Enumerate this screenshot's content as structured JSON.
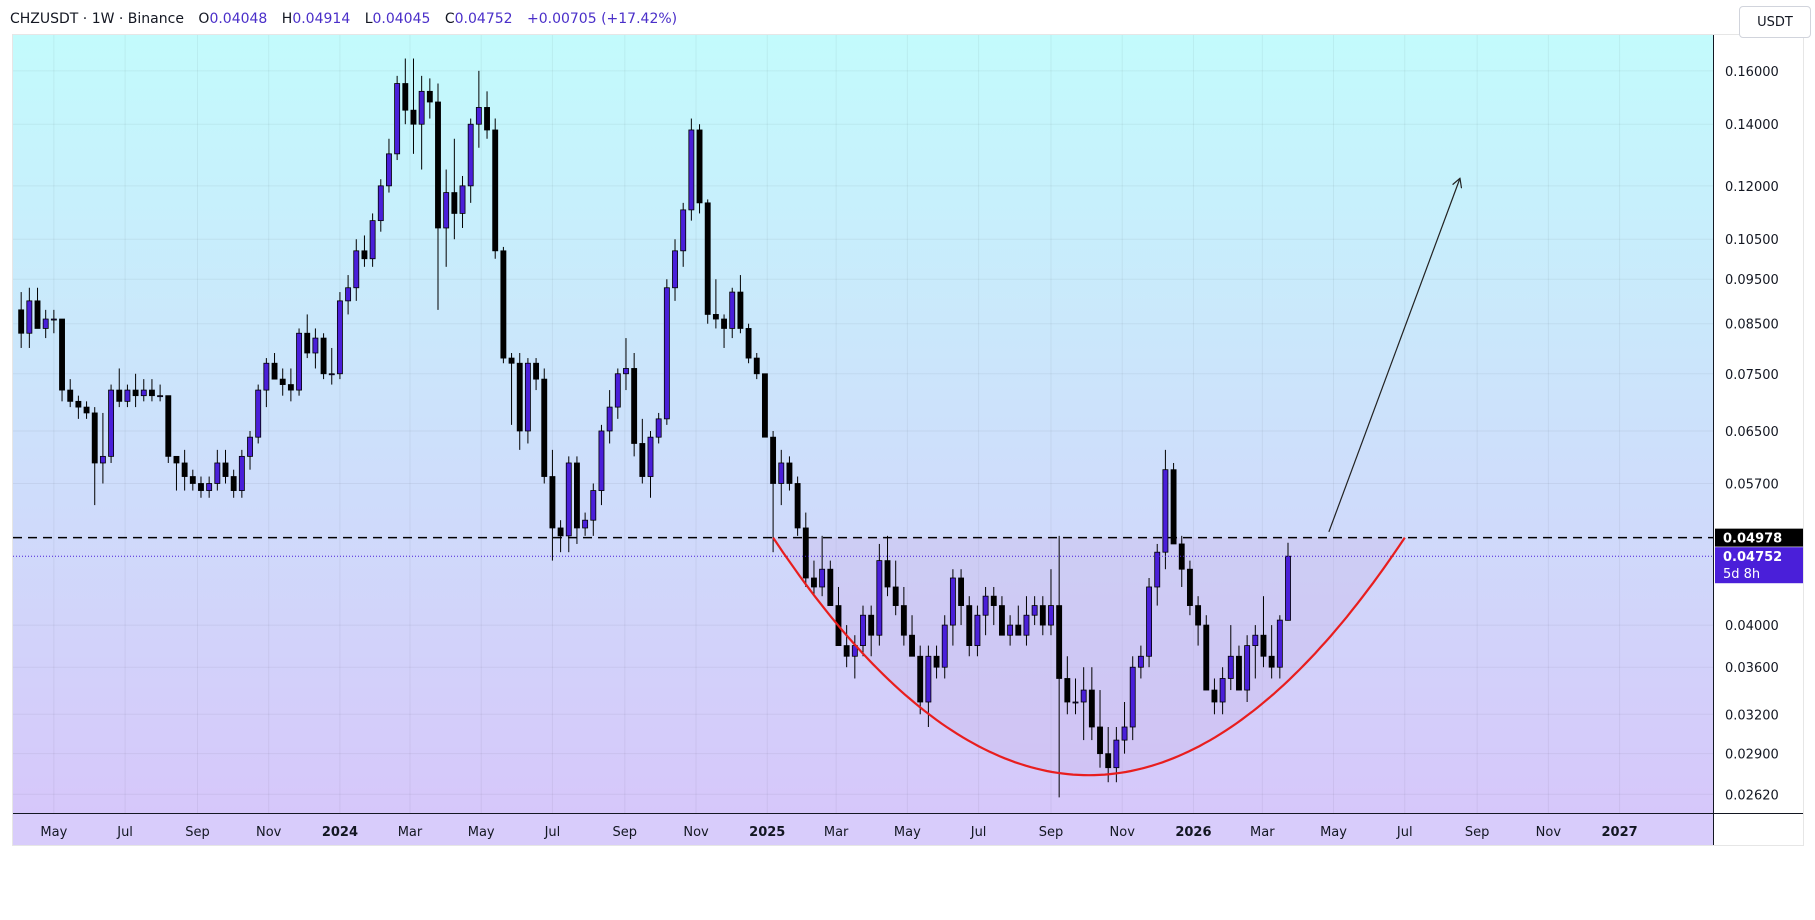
{
  "header": {
    "symbol_line": "CHZUSDT · 1W · Binance",
    "open_label": "O",
    "open_value": "0.04048",
    "high_label": "H",
    "high_value": "0.04914",
    "low_label": "L",
    "low_value": "0.04045",
    "close_label": "C",
    "close_value": "0.04752",
    "change": "+0.00705 (+17.42%)"
  },
  "currency_button": "USDT",
  "colors": {
    "bg_top": "#c3fbfc",
    "bg_bottom": "#d6c7fa",
    "up_candle": "#4a1fd9",
    "down_candle": "#000000",
    "curve": "#e81e1e",
    "current_price_tag": "#4a1fd9",
    "resistance_tag": "#000000"
  },
  "chart_data": {
    "type": "candlestick",
    "symbol": "CHZUSDT",
    "interval": "1W",
    "exchange": "Binance",
    "y_scale": "log",
    "ylim": [
      0.025,
      0.175
    ],
    "x_range": [
      "2023-03-27",
      "2027-03-22"
    ],
    "y_ticks": [
      "0.16000",
      "0.14000",
      "0.12000",
      "0.10500",
      "0.09500",
      "0.08500",
      "0.07500",
      "0.06500",
      "0.05700",
      "0.04000",
      "0.03600",
      "0.03200",
      "0.02900",
      "0.02620"
    ],
    "x_ticks": [
      {
        "label": "May",
        "date": "2023-05-01",
        "bold": false
      },
      {
        "label": "Jul",
        "date": "2023-07-01",
        "bold": false
      },
      {
        "label": "Sep",
        "date": "2023-09-01",
        "bold": false
      },
      {
        "label": "Nov",
        "date": "2023-11-01",
        "bold": false
      },
      {
        "label": "2024",
        "date": "2024-01-01",
        "bold": true
      },
      {
        "label": "Mar",
        "date": "2024-03-01",
        "bold": false
      },
      {
        "label": "May",
        "date": "2024-05-01",
        "bold": false
      },
      {
        "label": "Jul",
        "date": "2024-07-01",
        "bold": false
      },
      {
        "label": "Sep",
        "date": "2024-09-01",
        "bold": false
      },
      {
        "label": "Nov",
        "date": "2024-11-01",
        "bold": false
      },
      {
        "label": "2025",
        "date": "2025-01-01",
        "bold": true
      },
      {
        "label": "Mar",
        "date": "2025-03-01",
        "bold": false
      },
      {
        "label": "May",
        "date": "2025-05-01",
        "bold": false
      },
      {
        "label": "Jul",
        "date": "2025-07-01",
        "bold": false
      },
      {
        "label": "Sep",
        "date": "2025-09-01",
        "bold": false
      },
      {
        "label": "Nov",
        "date": "2025-11-01",
        "bold": false
      },
      {
        "label": "2026",
        "date": "2026-01-01",
        "bold": true
      },
      {
        "label": "Mar",
        "date": "2026-03-01",
        "bold": false
      },
      {
        "label": "May",
        "date": "2026-05-01",
        "bold": false
      },
      {
        "label": "Jul",
        "date": "2026-07-01",
        "bold": false
      },
      {
        "label": "Sep",
        "date": "2026-09-01",
        "bold": false
      },
      {
        "label": "Nov",
        "date": "2026-11-01",
        "bold": false
      },
      {
        "label": "2027",
        "date": "2027-01-01",
        "bold": true
      }
    ],
    "first_candle_date": "2023-04-03",
    "candles": [
      [
        0.088,
        0.092,
        0.08,
        0.083
      ],
      [
        0.083,
        0.093,
        0.08,
        0.09
      ],
      [
        0.09,
        0.093,
        0.084,
        0.084
      ],
      [
        0.084,
        0.088,
        0.082,
        0.086
      ],
      [
        0.086,
        0.088,
        0.083,
        0.086
      ],
      [
        0.086,
        0.086,
        0.07,
        0.072
      ],
      [
        0.072,
        0.074,
        0.069,
        0.07
      ],
      [
        0.07,
        0.071,
        0.067,
        0.069
      ],
      [
        0.069,
        0.07,
        0.067,
        0.068
      ],
      [
        0.068,
        0.069,
        0.054,
        0.06
      ],
      [
        0.06,
        0.068,
        0.057,
        0.061
      ],
      [
        0.061,
        0.073,
        0.06,
        0.072
      ],
      [
        0.072,
        0.076,
        0.069,
        0.07
      ],
      [
        0.07,
        0.073,
        0.069,
        0.072
      ],
      [
        0.072,
        0.075,
        0.069,
        0.071
      ],
      [
        0.071,
        0.074,
        0.07,
        0.072
      ],
      [
        0.072,
        0.074,
        0.07,
        0.071
      ],
      [
        0.071,
        0.073,
        0.07,
        0.071
      ],
      [
        0.071,
        0.071,
        0.06,
        0.061
      ],
      [
        0.061,
        0.061,
        0.056,
        0.06
      ],
      [
        0.06,
        0.062,
        0.056,
        0.058
      ],
      [
        0.058,
        0.059,
        0.056,
        0.057
      ],
      [
        0.057,
        0.058,
        0.055,
        0.056
      ],
      [
        0.056,
        0.058,
        0.055,
        0.057
      ],
      [
        0.057,
        0.062,
        0.056,
        0.06
      ],
      [
        0.06,
        0.062,
        0.057,
        0.058
      ],
      [
        0.058,
        0.059,
        0.055,
        0.056
      ],
      [
        0.056,
        0.062,
        0.055,
        0.061
      ],
      [
        0.061,
        0.065,
        0.059,
        0.064
      ],
      [
        0.064,
        0.073,
        0.063,
        0.072
      ],
      [
        0.072,
        0.078,
        0.069,
        0.077
      ],
      [
        0.077,
        0.079,
        0.074,
        0.074
      ],
      [
        0.074,
        0.076,
        0.071,
        0.073
      ],
      [
        0.073,
        0.076,
        0.07,
        0.072
      ],
      [
        0.072,
        0.084,
        0.071,
        0.083
      ],
      [
        0.083,
        0.087,
        0.078,
        0.079
      ],
      [
        0.079,
        0.084,
        0.076,
        0.082
      ],
      [
        0.082,
        0.083,
        0.074,
        0.075
      ],
      [
        0.075,
        0.08,
        0.073,
        0.075
      ],
      [
        0.075,
        0.092,
        0.074,
        0.09
      ],
      [
        0.09,
        0.096,
        0.087,
        0.093
      ],
      [
        0.093,
        0.105,
        0.09,
        0.102
      ],
      [
        0.102,
        0.106,
        0.098,
        0.1
      ],
      [
        0.1,
        0.112,
        0.098,
        0.11
      ],
      [
        0.11,
        0.122,
        0.107,
        0.12
      ],
      [
        0.12,
        0.135,
        0.118,
        0.13
      ],
      [
        0.13,
        0.158,
        0.128,
        0.155
      ],
      [
        0.155,
        0.165,
        0.14,
        0.145
      ],
      [
        0.145,
        0.165,
        0.13,
        0.14
      ],
      [
        0.14,
        0.158,
        0.125,
        0.152
      ],
      [
        0.152,
        0.157,
        0.142,
        0.148
      ],
      [
        0.148,
        0.155,
        0.088,
        0.108
      ],
      [
        0.108,
        0.125,
        0.098,
        0.118
      ],
      [
        0.118,
        0.135,
        0.105,
        0.112
      ],
      [
        0.112,
        0.123,
        0.108,
        0.12
      ],
      [
        0.12,
        0.142,
        0.115,
        0.14
      ],
      [
        0.14,
        0.16,
        0.132,
        0.146
      ],
      [
        0.146,
        0.152,
        0.135,
        0.138
      ],
      [
        0.138,
        0.142,
        0.1,
        0.102
      ],
      [
        0.102,
        0.103,
        0.077,
        0.078
      ],
      [
        0.078,
        0.079,
        0.066,
        0.077
      ],
      [
        0.077,
        0.079,
        0.062,
        0.065
      ],
      [
        0.065,
        0.078,
        0.063,
        0.077
      ],
      [
        0.077,
        0.078,
        0.072,
        0.074
      ],
      [
        0.074,
        0.076,
        0.057,
        0.058
      ],
      [
        0.058,
        0.062,
        0.047,
        0.051
      ],
      [
        0.051,
        0.052,
        0.048,
        0.05
      ],
      [
        0.05,
        0.061,
        0.048,
        0.06
      ],
      [
        0.06,
        0.061,
        0.049,
        0.051
      ],
      [
        0.051,
        0.053,
        0.05,
        0.052
      ],
      [
        0.052,
        0.057,
        0.05,
        0.056
      ],
      [
        0.056,
        0.066,
        0.054,
        0.065
      ],
      [
        0.065,
        0.072,
        0.063,
        0.069
      ],
      [
        0.069,
        0.076,
        0.067,
        0.075
      ],
      [
        0.075,
        0.082,
        0.072,
        0.076
      ],
      [
        0.076,
        0.079,
        0.061,
        0.063
      ],
      [
        0.063,
        0.067,
        0.057,
        0.058
      ],
      [
        0.058,
        0.065,
        0.055,
        0.064
      ],
      [
        0.064,
        0.068,
        0.063,
        0.067
      ],
      [
        0.067,
        0.095,
        0.066,
        0.093
      ],
      [
        0.093,
        0.105,
        0.09,
        0.102
      ],
      [
        0.102,
        0.115,
        0.098,
        0.113
      ],
      [
        0.113,
        0.142,
        0.11,
        0.138
      ],
      [
        0.138,
        0.14,
        0.112,
        0.115
      ],
      [
        0.115,
        0.116,
        0.085,
        0.087
      ],
      [
        0.087,
        0.095,
        0.084,
        0.086
      ],
      [
        0.086,
        0.087,
        0.08,
        0.084
      ],
      [
        0.084,
        0.093,
        0.082,
        0.092
      ],
      [
        0.092,
        0.096,
        0.083,
        0.084
      ],
      [
        0.084,
        0.085,
        0.077,
        0.078
      ],
      [
        0.078,
        0.079,
        0.074,
        0.075
      ],
      [
        0.075,
        0.075,
        0.064,
        0.064
      ],
      [
        0.064,
        0.065,
        0.048,
        0.057
      ],
      [
        0.057,
        0.062,
        0.054,
        0.06
      ],
      [
        0.06,
        0.061,
        0.056,
        0.057
      ],
      [
        0.057,
        0.058,
        0.05,
        0.051
      ],
      [
        0.051,
        0.053,
        0.044,
        0.045
      ],
      [
        0.045,
        0.047,
        0.043,
        0.044
      ],
      [
        0.044,
        0.05,
        0.043,
        0.046
      ],
      [
        0.046,
        0.047,
        0.042,
        0.042
      ],
      [
        0.042,
        0.044,
        0.038,
        0.038
      ],
      [
        0.038,
        0.04,
        0.036,
        0.037
      ],
      [
        0.037,
        0.039,
        0.035,
        0.038
      ],
      [
        0.038,
        0.042,
        0.037,
        0.041
      ],
      [
        0.041,
        0.042,
        0.037,
        0.039
      ],
      [
        0.039,
        0.049,
        0.038,
        0.047
      ],
      [
        0.047,
        0.05,
        0.043,
        0.044
      ],
      [
        0.044,
        0.047,
        0.041,
        0.042
      ],
      [
        0.042,
        0.044,
        0.038,
        0.039
      ],
      [
        0.039,
        0.041,
        0.037,
        0.037
      ],
      [
        0.037,
        0.038,
        0.032,
        0.033
      ],
      [
        0.033,
        0.038,
        0.031,
        0.037
      ],
      [
        0.037,
        0.038,
        0.035,
        0.036
      ],
      [
        0.036,
        0.041,
        0.035,
        0.04
      ],
      [
        0.04,
        0.046,
        0.038,
        0.045
      ],
      [
        0.045,
        0.046,
        0.04,
        0.042
      ],
      [
        0.042,
        0.043,
        0.037,
        0.038
      ],
      [
        0.038,
        0.042,
        0.037,
        0.041
      ],
      [
        0.041,
        0.044,
        0.039,
        0.043
      ],
      [
        0.043,
        0.044,
        0.04,
        0.042
      ],
      [
        0.042,
        0.043,
        0.039,
        0.039
      ],
      [
        0.039,
        0.041,
        0.038,
        0.04
      ],
      [
        0.04,
        0.042,
        0.039,
        0.039
      ],
      [
        0.039,
        0.043,
        0.038,
        0.041
      ],
      [
        0.041,
        0.043,
        0.04,
        0.042
      ],
      [
        0.042,
        0.043,
        0.039,
        0.04
      ],
      [
        0.04,
        0.046,
        0.039,
        0.042
      ],
      [
        0.042,
        0.05,
        0.026,
        0.035
      ],
      [
        0.035,
        0.037,
        0.032,
        0.033
      ],
      [
        0.033,
        0.035,
        0.032,
        0.033
      ],
      [
        0.033,
        0.036,
        0.03,
        0.034
      ],
      [
        0.034,
        0.036,
        0.03,
        0.031
      ],
      [
        0.031,
        0.034,
        0.028,
        0.029
      ],
      [
        0.029,
        0.031,
        0.027,
        0.028
      ],
      [
        0.028,
        0.031,
        0.027,
        0.03
      ],
      [
        0.03,
        0.033,
        0.029,
        0.031
      ],
      [
        0.031,
        0.037,
        0.03,
        0.036
      ],
      [
        0.036,
        0.038,
        0.035,
        0.037
      ],
      [
        0.037,
        0.045,
        0.036,
        0.044
      ],
      [
        0.044,
        0.049,
        0.042,
        0.048
      ],
      [
        0.048,
        0.062,
        0.046,
        0.059
      ],
      [
        0.059,
        0.06,
        0.049,
        0.049
      ],
      [
        0.049,
        0.05,
        0.044,
        0.046
      ],
      [
        0.046,
        0.047,
        0.041,
        0.042
      ],
      [
        0.042,
        0.043,
        0.038,
        0.04
      ],
      [
        0.04,
        0.041,
        0.034,
        0.034
      ],
      [
        0.034,
        0.035,
        0.032,
        0.033
      ],
      [
        0.033,
        0.036,
        0.032,
        0.035
      ],
      [
        0.035,
        0.04,
        0.034,
        0.037
      ],
      [
        0.037,
        0.038,
        0.034,
        0.034
      ],
      [
        0.034,
        0.039,
        0.033,
        0.038
      ],
      [
        0.038,
        0.04,
        0.035,
        0.039
      ],
      [
        0.039,
        0.043,
        0.036,
        0.037
      ],
      [
        0.037,
        0.04,
        0.035,
        0.036
      ],
      [
        0.036,
        0.041,
        0.035,
        0.0405
      ],
      [
        0.04048,
        0.04914,
        0.04045,
        0.04752
      ]
    ],
    "horizontal_lines": [
      {
        "price": 0.04978,
        "style": "dashed",
        "label": "0.04978"
      },
      {
        "price": 0.04752,
        "style": "dotted",
        "label": "0.04752",
        "countdown": "5d 8h"
      }
    ],
    "annotations": [
      {
        "type": "cup_curve",
        "from": [
          "2025-01-06",
          0.04978
        ],
        "bottom": [
          "2025-10-13",
          0.0275
        ],
        "to": [
          "2026-07-01",
          0.04978
        ]
      },
      {
        "type": "arrow",
        "from": [
          "2026-04-27",
          0.0505
        ],
        "to": [
          "2026-08-17",
          0.122
        ]
      }
    ]
  }
}
